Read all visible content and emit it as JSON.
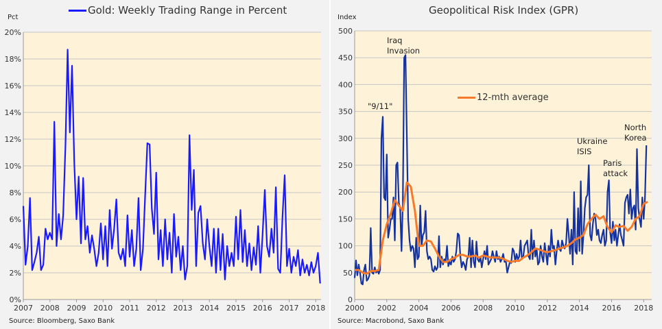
{
  "chart_data": [
    {
      "type": "line",
      "title": "Gold: Weekly Trading Range in Percent",
      "ylabel": "Pct",
      "source": "Source: Bloomberg, Saxo Bank",
      "xlim": [
        2007,
        2018.2
      ],
      "ylim": [
        0,
        20
      ],
      "x_ticks": [
        "2007",
        "2008",
        "2009",
        "2010",
        "2011",
        "2012",
        "2013",
        "2014",
        "2015",
        "2016",
        "2017",
        "2018"
      ],
      "y_ticks": [
        "0%",
        "2%",
        "4%",
        "6%",
        "8%",
        "10%",
        "12%",
        "14%",
        "16%",
        "18%",
        "20%"
      ],
      "grid": true,
      "legend": "top",
      "series": [
        {
          "name": "Gold: Weekly Trading Range in Percent",
          "color": "#1a1aff",
          "start": "2007-01",
          "frequency": "monthly",
          "values": [
            7.0,
            2.6,
            4.0,
            7.6,
            2.2,
            2.8,
            3.5,
            4.7,
            2.2,
            2.6,
            5.3,
            4.5,
            5.0,
            4.5,
            13.3,
            4.0,
            6.4,
            4.5,
            6.3,
            11.5,
            18.7,
            12.5,
            17.5,
            10.2,
            6.0,
            9.2,
            4.2,
            9.1,
            4.5,
            5.5,
            3.5,
            4.8,
            3.8,
            2.5,
            3.5,
            5.7,
            3.0,
            5.5,
            2.5,
            6.7,
            3.8,
            5.3,
            7.5,
            3.5,
            3.0,
            3.8,
            2.5,
            6.3,
            3.2,
            5.2,
            2.5,
            3.8,
            7.6,
            2.2,
            3.8,
            7.8,
            11.7,
            11.6,
            6.8,
            4.9,
            9.5,
            3.0,
            5.2,
            2.5,
            6.0,
            3.0,
            5.0,
            2.0,
            6.4,
            3.2,
            4.7,
            2.2,
            4.0,
            1.5,
            2.5,
            12.3,
            6.7,
            9.7,
            2.5,
            6.5,
            7.0,
            4.2,
            3.0,
            6.0,
            4.0,
            2.5,
            5.3,
            2.0,
            5.3,
            2.2,
            4.9,
            1.5,
            4.0,
            2.5,
            3.5,
            2.5,
            6.2,
            3.0,
            6.7,
            2.8,
            5.2,
            2.5,
            4.2,
            2.2,
            3.9,
            2.6,
            5.5,
            2.0,
            4.8,
            8.2,
            4.0,
            3.2,
            5.3,
            3.5,
            8.4,
            2.3,
            2.0,
            6.2,
            9.3,
            2.5,
            3.8,
            2.0,
            3.2,
            2.5,
            3.7,
            1.8,
            3.0,
            2.0,
            2.6,
            1.8,
            2.8,
            2.0,
            2.5,
            3.5,
            1.2
          ]
        }
      ]
    },
    {
      "type": "line",
      "title": "Geopolitical Risk Index (GPR)",
      "ylabel": "Index",
      "source": "Source: Macrobond, Saxo Bank",
      "xlim": [
        2000,
        2018.5
      ],
      "ylim": [
        0,
        500
      ],
      "x_ticks": [
        "2000",
        "2002",
        "2004",
        "2006",
        "2008",
        "2010",
        "2012",
        "2014",
        "2016",
        "2018"
      ],
      "y_ticks": [
        "0",
        "50",
        "100",
        "150",
        "200",
        "250",
        "300",
        "350",
        "400",
        "450",
        "500"
      ],
      "grid": true,
      "legend": "center",
      "series": [
        {
          "color": "#1432a0",
          "start": "2000-01",
          "frequency": "monthly",
          "values": [
            40,
            73,
            45,
            65,
            50,
            30,
            28,
            55,
            65,
            35,
            38,
            45,
            133,
            50,
            48,
            60,
            50,
            55,
            48,
            55,
            300,
            340,
            190,
            185,
            270,
            115,
            130,
            150,
            150,
            190,
            110,
            250,
            255,
            180,
            170,
            90,
            180,
            450,
            455,
            300,
            150,
            110,
            90,
            100,
            95,
            60,
            115,
            75,
            80,
            175,
            100,
            120,
            125,
            165,
            90,
            75,
            80,
            75,
            55,
            52,
            62,
            55,
            60,
            118,
            60,
            80,
            65,
            75,
            70,
            100,
            62,
            70,
            65,
            80,
            70,
            75,
            90,
            123,
            120,
            80,
            60,
            70,
            65,
            55,
            75,
            80,
            115,
            60,
            110,
            70,
            60,
            108,
            75,
            70,
            80,
            60,
            75,
            90,
            75,
            100,
            65,
            70,
            75,
            90,
            80,
            70,
            90,
            75,
            80,
            70,
            75,
            85,
            70,
            72,
            50,
            60,
            70,
            68,
            95,
            90,
            70,
            85,
            75,
            80,
            110,
            75,
            80,
            100,
            105,
            110,
            80,
            75,
            130,
            75,
            110,
            80,
            95,
            65,
            70,
            100,
            80,
            70,
            105,
            85,
            65,
            100,
            80,
            130,
            95,
            100,
            65,
            90,
            110,
            95,
            90,
            110,
            100,
            95,
            105,
            150,
            120,
            85,
            130,
            65,
            200,
            90,
            85,
            170,
            90,
            220,
            85,
            120,
            170,
            190,
            195,
            250,
            120,
            110,
            140,
            160,
            150,
            120,
            130,
            110,
            105,
            120,
            130,
            100,
            110,
            200,
            222,
            125,
            105,
            145,
            110,
            130,
            100,
            120,
            140,
            120,
            110,
            100,
            180,
            190,
            195,
            160,
            205,
            150,
            170,
            175,
            130,
            280,
            170,
            150,
            135,
            190,
            150,
            190,
            287
          ]
        },
        {
          "name": "12-mth average",
          "color": "#f77a2b",
          "start": "2000-01",
          "frequency": "quarterly",
          "values": [
            55,
            55,
            50,
            48,
            53,
            53,
            55,
            110,
            140,
            160,
            185,
            175,
            165,
            218,
            210,
            165,
            100,
            100,
            110,
            108,
            95,
            80,
            70,
            70,
            75,
            78,
            83,
            83,
            80,
            80,
            82,
            78,
            82,
            80,
            78,
            78,
            78,
            76,
            72,
            70,
            72,
            72,
            78,
            82,
            88,
            95,
            93,
            90,
            88,
            90,
            92,
            95,
            97,
            100,
            105,
            112,
            115,
            120,
            140,
            150,
            158,
            150,
            155,
            135,
            125,
            138,
            135,
            137,
            128,
            135,
            150,
            155,
            178,
            182
          ]
        }
      ],
      "annotations": [
        {
          "text": "\"9/11\""
        },
        {
          "text": "Iraq\nInvasion"
        },
        {
          "text": "Ukraine\nISIS"
        },
        {
          "text": "Paris\nattack"
        },
        {
          "text": "North\nKorea"
        }
      ]
    }
  ]
}
